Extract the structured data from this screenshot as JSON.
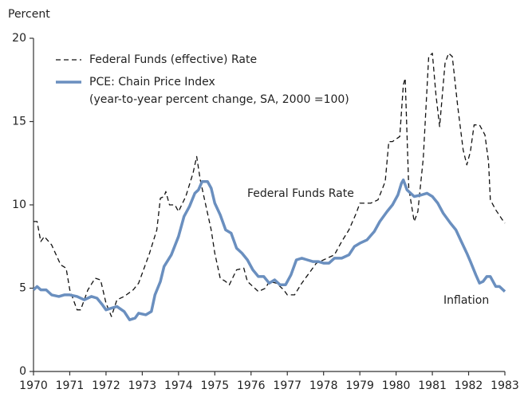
{
  "chart_data": {
    "type": "line",
    "y_label": "Percent",
    "xlim": [
      1970,
      1983
    ],
    "xticks": [
      1970,
      1971,
      1972,
      1973,
      1974,
      1975,
      1976,
      1977,
      1978,
      1979,
      1980,
      1981,
      1982,
      1983
    ],
    "ylim": [
      0,
      20
    ],
    "yticks": [
      0,
      5,
      10,
      15,
      20
    ],
    "grid": false,
    "annotations": [
      "Federal Funds Rate",
      "Inflation"
    ],
    "series": [
      {
        "name": "Federal Funds (effective) Rate",
        "color": "#111111",
        "dashed": true,
        "x": [
          1970.0,
          1970.1,
          1970.2,
          1970.3,
          1970.5,
          1970.75,
          1970.9,
          1971.0,
          1971.2,
          1971.3,
          1971.5,
          1971.7,
          1971.85,
          1972.0,
          1972.15,
          1972.3,
          1972.5,
          1972.75,
          1972.9,
          1973.0,
          1973.2,
          1973.4,
          1973.5,
          1973.6,
          1973.65,
          1973.75,
          1973.9,
          1974.0,
          1974.2,
          1974.4,
          1974.5,
          1974.6,
          1974.75,
          1974.9,
          1975.0,
          1975.15,
          1975.3,
          1975.4,
          1975.6,
          1975.8,
          1975.9,
          1976.0,
          1976.2,
          1976.4,
          1976.5,
          1976.7,
          1976.9,
          1977.0,
          1977.2,
          1977.4,
          1977.6,
          1977.8,
          1978.0,
          1978.3,
          1978.5,
          1978.7,
          1978.9,
          1979.0,
          1979.3,
          1979.5,
          1979.7,
          1979.8,
          1979.9,
          1980.1,
          1980.2,
          1980.25,
          1980.35,
          1980.5,
          1980.6,
          1980.75,
          1980.9,
          1981.0,
          1981.1,
          1981.2,
          1981.35,
          1981.45,
          1981.55,
          1981.7,
          1981.85,
          1981.95,
          1982.05,
          1982.15,
          1982.3,
          1982.45,
          1982.55,
          1982.6,
          1982.75,
          1982.9,
          1983.0
        ],
        "values": [
          9.0,
          9.0,
          7.8,
          8.1,
          7.6,
          6.4,
          6.2,
          4.9,
          3.7,
          3.7,
          4.9,
          5.6,
          5.5,
          4.1,
          3.3,
          4.3,
          4.5,
          4.9,
          5.3,
          5.9,
          7.1,
          8.5,
          10.4,
          10.5,
          10.8,
          10.0,
          10.0,
          9.6,
          10.5,
          11.9,
          12.9,
          11.5,
          10.0,
          8.5,
          7.1,
          5.6,
          5.4,
          5.2,
          6.1,
          6.2,
          5.4,
          5.2,
          4.8,
          5.0,
          5.4,
          5.3,
          4.9,
          4.6,
          4.6,
          5.3,
          5.9,
          6.5,
          6.7,
          7.0,
          7.8,
          8.5,
          9.5,
          10.1,
          10.1,
          10.3,
          11.4,
          13.8,
          13.8,
          14.1,
          17.2,
          17.6,
          11.0,
          9.0,
          9.6,
          12.8,
          18.9,
          19.1,
          16.6,
          14.7,
          18.5,
          19.1,
          18.9,
          15.9,
          13.3,
          12.4,
          13.2,
          14.8,
          14.8,
          14.2,
          12.6,
          10.3,
          9.7,
          9.2,
          8.9
        ]
      },
      {
        "name": "PCE: Chain Price Index",
        "note": "(year-to-year percent change, SA, 2000 =100)",
        "color": "#6a8fbf",
        "dashed": false,
        "x": [
          1970.0,
          1970.1,
          1970.2,
          1970.35,
          1970.5,
          1970.7,
          1970.85,
          1971.0,
          1971.2,
          1971.4,
          1971.6,
          1971.75,
          1971.9,
          1972.0,
          1972.15,
          1972.3,
          1972.5,
          1972.65,
          1972.8,
          1972.9,
          1973.1,
          1973.25,
          1973.35,
          1973.5,
          1973.6,
          1973.8,
          1974.0,
          1974.15,
          1974.3,
          1974.45,
          1974.55,
          1974.65,
          1974.8,
          1974.9,
          1975.0,
          1975.15,
          1975.3,
          1975.45,
          1975.6,
          1975.75,
          1975.9,
          1976.05,
          1976.2,
          1976.35,
          1976.5,
          1976.65,
          1976.8,
          1976.95,
          1977.1,
          1977.25,
          1977.4,
          1977.55,
          1977.7,
          1977.85,
          1978.0,
          1978.15,
          1978.3,
          1978.5,
          1978.7,
          1978.85,
          1979.0,
          1979.2,
          1979.4,
          1979.55,
          1979.75,
          1979.9,
          1980.05,
          1980.15,
          1980.2,
          1980.3,
          1980.5,
          1980.7,
          1980.85,
          1981.0,
          1981.15,
          1981.3,
          1981.5,
          1981.65,
          1981.8,
          1981.95,
          1982.05,
          1982.2,
          1982.3,
          1982.4,
          1982.5,
          1982.6,
          1982.75,
          1982.85,
          1983.0
        ],
        "values": [
          4.9,
          5.1,
          4.9,
          4.9,
          4.6,
          4.5,
          4.6,
          4.6,
          4.5,
          4.3,
          4.5,
          4.4,
          4.0,
          3.7,
          3.8,
          3.9,
          3.6,
          3.1,
          3.2,
          3.5,
          3.4,
          3.6,
          4.6,
          5.4,
          6.3,
          7.0,
          8.1,
          9.3,
          9.9,
          10.7,
          10.9,
          11.4,
          11.4,
          11.0,
          10.1,
          9.4,
          8.5,
          8.3,
          7.4,
          7.1,
          6.7,
          6.1,
          5.7,
          5.7,
          5.3,
          5.5,
          5.2,
          5.2,
          5.8,
          6.7,
          6.8,
          6.7,
          6.6,
          6.6,
          6.5,
          6.5,
          6.8,
          6.8,
          7.0,
          7.5,
          7.7,
          7.9,
          8.4,
          9.0,
          9.6,
          10.0,
          10.6,
          11.3,
          11.5,
          10.9,
          10.5,
          10.6,
          10.7,
          10.5,
          10.1,
          9.5,
          8.9,
          8.5,
          7.8,
          7.1,
          6.6,
          5.8,
          5.3,
          5.4,
          5.7,
          5.7,
          5.1,
          5.1,
          4.8
        ]
      }
    ]
  }
}
